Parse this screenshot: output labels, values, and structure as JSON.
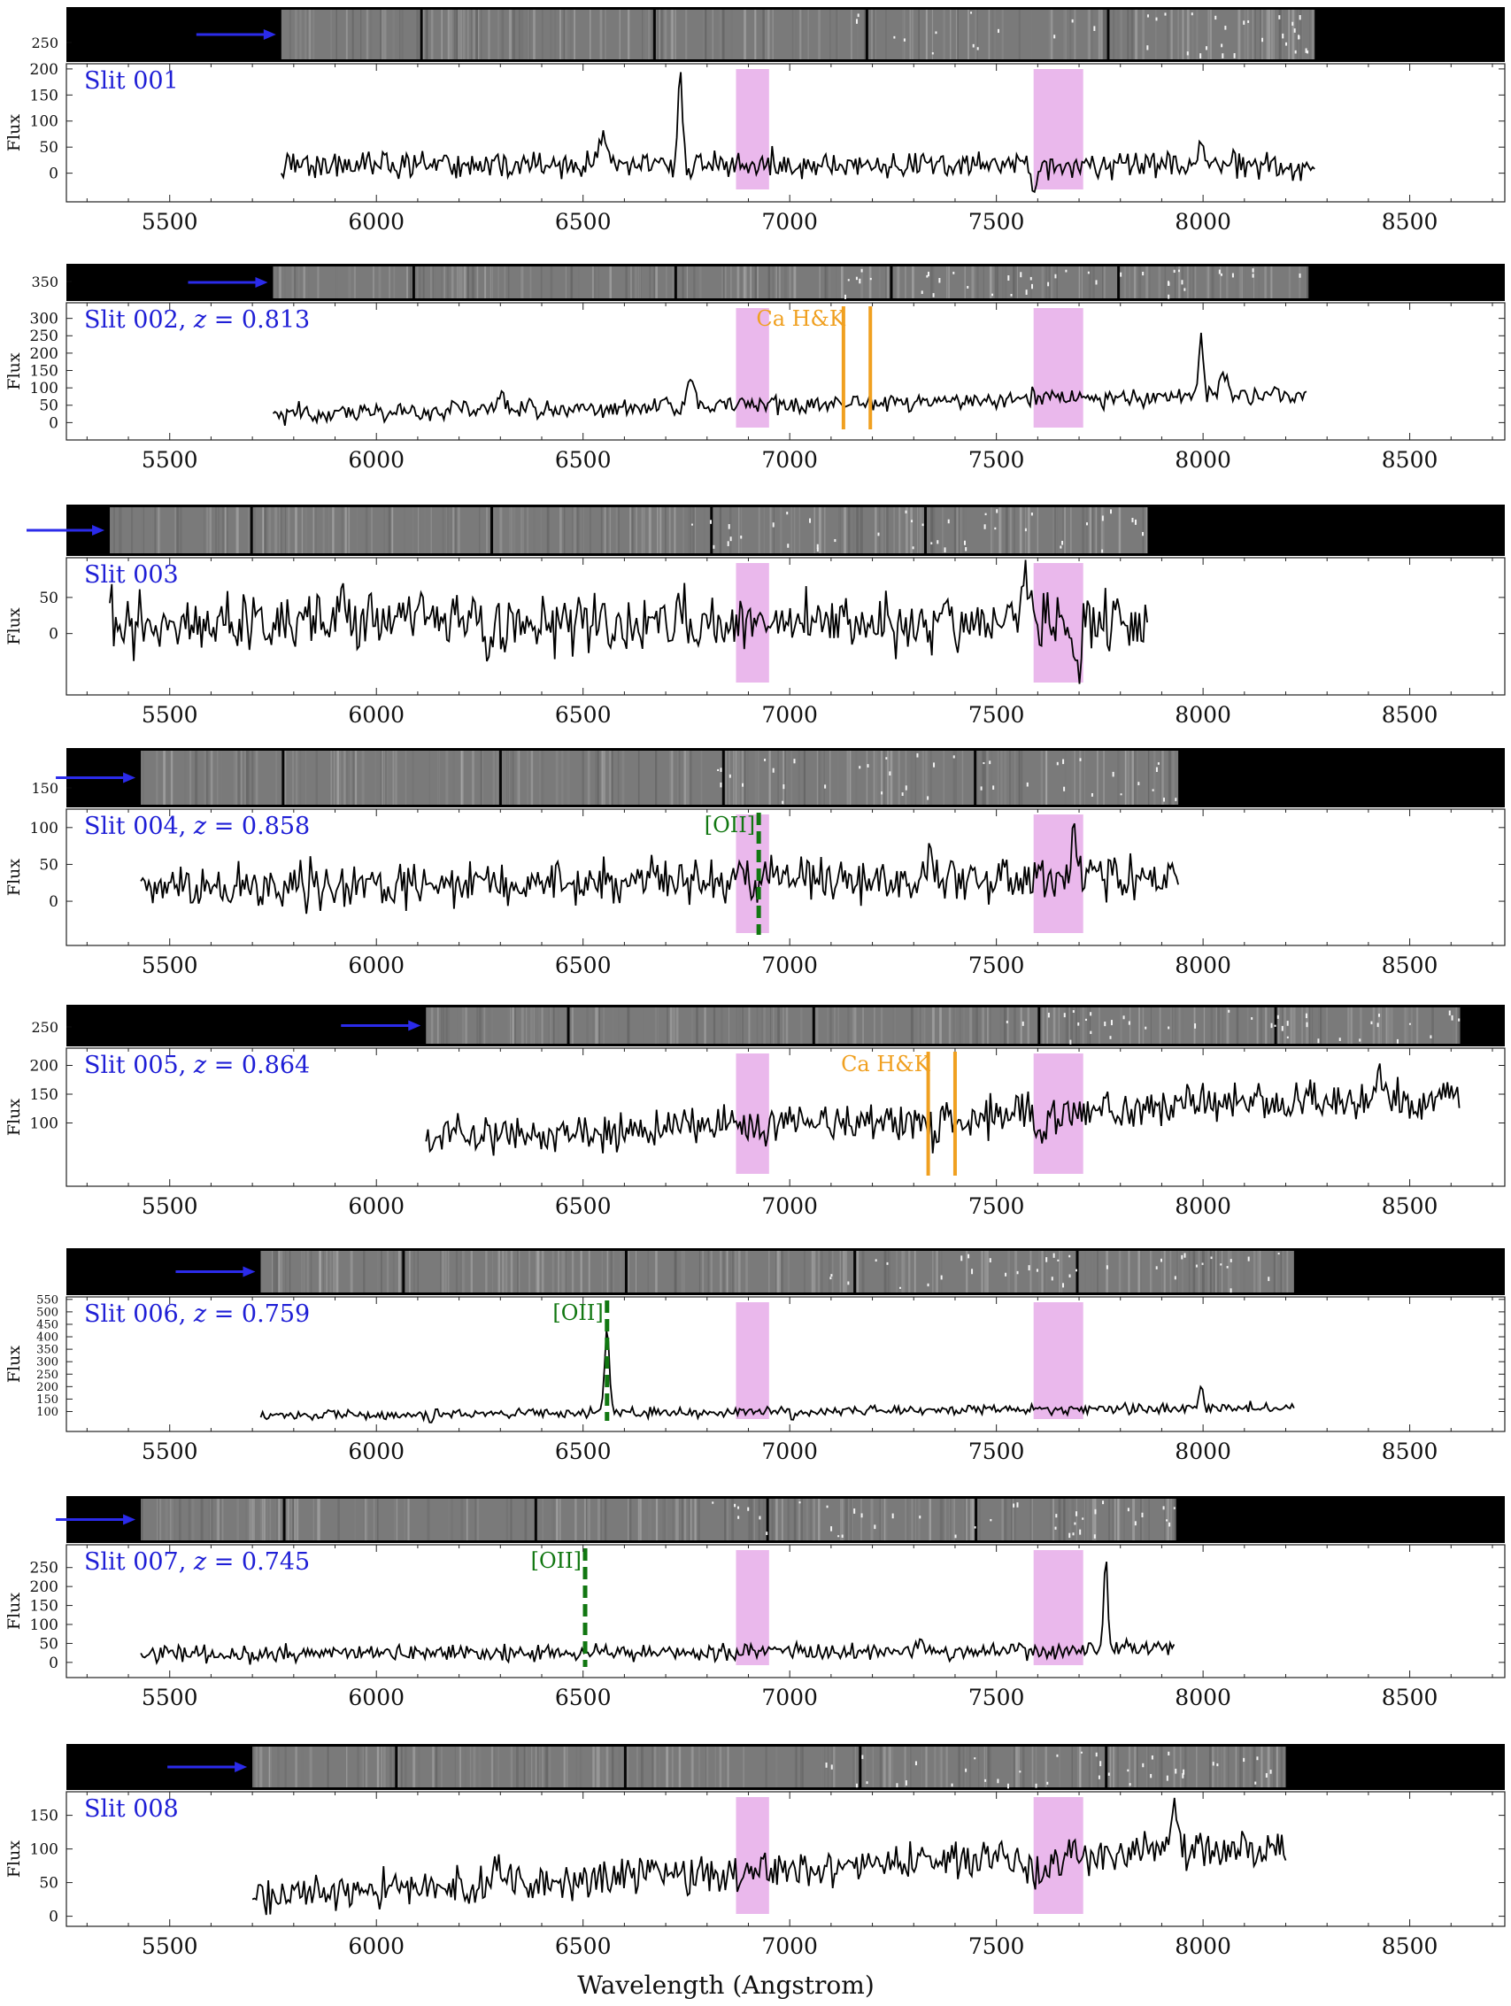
{
  "figure": {
    "xlabel": "Wavelength (Angstrom)",
    "ylabel": "Flux"
  },
  "chart_data": [
    {
      "type": "line",
      "slit": "001",
      "label": "Slit 001",
      "xlim": [
        5250,
        8730
      ],
      "ylim": [
        -55,
        210
      ],
      "yticks": [
        0,
        50,
        100,
        150,
        200
      ],
      "image_ytick": "250",
      "xticks": [
        5500,
        6000,
        6500,
        7000,
        7500,
        8000,
        8500
      ],
      "trace_range": [
        5770,
        8270
      ],
      "baseline": 15,
      "noise": 13,
      "trend": 0,
      "features": [
        [
          6550,
          45,
          12
        ],
        [
          6735,
          185,
          5
        ],
        [
          7590,
          -45,
          6
        ],
        [
          7997,
          38,
          10
        ]
      ],
      "ca_hk": null,
      "oii": null
    },
    {
      "type": "line",
      "slit": "002",
      "label": "Slit 002, z = 0.813",
      "xlim": [
        5250,
        8730
      ],
      "ylim": [
        -50,
        345
      ],
      "yticks": [
        0,
        50,
        100,
        150,
        200,
        250,
        300
      ],
      "image_ytick": "350",
      "xticks": [
        5500,
        6000,
        6500,
        7000,
        7500,
        8000,
        8500
      ],
      "trace_range": [
        5750,
        8250
      ],
      "baseline": 25,
      "noise": 13,
      "trend": 55,
      "features": [
        [
          6300,
          45,
          8
        ],
        [
          6760,
          70,
          8
        ],
        [
          7995,
          200,
          5
        ],
        [
          8050,
          80,
          8
        ]
      ],
      "ca_hk": {
        "label": "Ca H&K",
        "lines": [
          7130,
          7195
        ]
      },
      "oii": null
    },
    {
      "type": "line",
      "slit": "003",
      "label": "Slit 003",
      "xlim": [
        5250,
        8730
      ],
      "ylim": [
        -85,
        105
      ],
      "yticks": [
        0,
        50
      ],
      "image_ytick": "",
      "xticks": [
        5500,
        6000,
        6500,
        7000,
        7500,
        8000,
        8500
      ],
      "trace_range": [
        5355,
        7865
      ],
      "baseline": 15,
      "noise": 20,
      "trend": 0,
      "features": [
        [
          6270,
          -55,
          6
        ],
        [
          7570,
          55,
          8
        ],
        [
          7700,
          -55,
          8
        ]
      ],
      "ca_hk": null,
      "oii": null
    },
    {
      "type": "line",
      "slit": "004",
      "label": "Slit 004, z = 0.858",
      "xlim": [
        5250,
        8730
      ],
      "ylim": [
        -60,
        125
      ],
      "yticks": [
        0,
        50,
        100
      ],
      "image_ytick": "150",
      "xticks": [
        5500,
        6000,
        6500,
        7000,
        7500,
        8000,
        8500
      ],
      "trace_range": [
        5430,
        7940
      ],
      "baseline": 18,
      "noise": 15,
      "trend": 15,
      "features": [
        [
          7340,
          40,
          8
        ],
        [
          7690,
          60,
          6
        ]
      ],
      "ca_hk": null,
      "oii": {
        "label": "[OII]",
        "line": 6925
      }
    },
    {
      "type": "line",
      "slit": "005",
      "label": "Slit 005, z = 0.864",
      "xlim": [
        5250,
        8730
      ],
      "ylim": [
        -10,
        230
      ],
      "yticks": [
        100,
        150,
        200
      ],
      "image_ytick": "250",
      "xticks": [
        5500,
        6000,
        6500,
        7000,
        7500,
        8000,
        8500
      ],
      "trace_range": [
        6120,
        8620
      ],
      "baseline": 70,
      "noise": 17,
      "trend": 80,
      "features": [
        [
          6935,
          -25,
          6
        ],
        [
          7350,
          -35,
          8
        ],
        [
          7400,
          -40,
          6
        ],
        [
          7610,
          -35,
          10
        ],
        [
          8420,
          50,
          8
        ]
      ],
      "ca_hk": {
        "label": "Ca H&K",
        "lines": [
          7335,
          7400
        ]
      },
      "oii": null
    },
    {
      "type": "line",
      "slit": "006",
      "label": "Slit 006, z = 0.759",
      "xlim": [
        5250,
        8730
      ],
      "ylim": [
        20,
        560
      ],
      "yticks": [
        100,
        150,
        200,
        250,
        300,
        350,
        400,
        450,
        500,
        550
      ],
      "image_ytick": "",
      "xticks": [
        5500,
        6000,
        6500,
        7000,
        7500,
        8000,
        8500
      ],
      "trace_range": [
        5720,
        8220
      ],
      "baseline": 85,
      "noise": 10,
      "trend": 30,
      "features": [
        [
          6558,
          330,
          6
        ],
        [
          7995,
          90,
          5
        ],
        [
          6130,
          -35,
          6
        ],
        [
          7010,
          -35,
          6
        ]
      ],
      "ca_hk": null,
      "oii": {
        "label": "[OII]",
        "line": 6558
      }
    },
    {
      "type": "line",
      "slit": "007",
      "label": "Slit 007, z = 0.745",
      "xlim": [
        5250,
        8730
      ],
      "ylim": [
        -40,
        310
      ],
      "yticks": [
        0,
        50,
        100,
        150,
        200,
        250
      ],
      "image_ytick": "",
      "xticks": [
        5500,
        6000,
        6500,
        7000,
        7500,
        8000,
        8500
      ],
      "trace_range": [
        5430,
        7930
      ],
      "baseline": 20,
      "noise": 11,
      "trend": 15,
      "features": [
        [
          7765,
          235,
          5
        ]
      ],
      "ca_hk": null,
      "oii": {
        "label": "[OII]",
        "line": 6505
      }
    },
    {
      "type": "line",
      "slit": "008",
      "label": "Slit 008",
      "xlim": [
        5250,
        8730
      ],
      "ylim": [
        -15,
        185
      ],
      "yticks": [
        0,
        50,
        100,
        150
      ],
      "image_ytick": "",
      "xticks": [
        5500,
        6000,
        6500,
        7000,
        7500,
        8000,
        8500
      ],
      "trace_range": [
        5700,
        8200
      ],
      "baseline": 30,
      "noise": 14,
      "trend": 75,
      "features": [
        [
          6290,
          45,
          8
        ],
        [
          7930,
          60,
          10
        ],
        [
          7600,
          -30,
          10
        ]
      ],
      "ca_hk": null,
      "oii": null
    }
  ],
  "colors": {
    "pink_band": "#eab8ec",
    "slit_label": "#1f1fd6",
    "ca_hk": "#f0a020",
    "oii": "#117711",
    "arrow": "#2b2bea",
    "trace": "#000000"
  }
}
